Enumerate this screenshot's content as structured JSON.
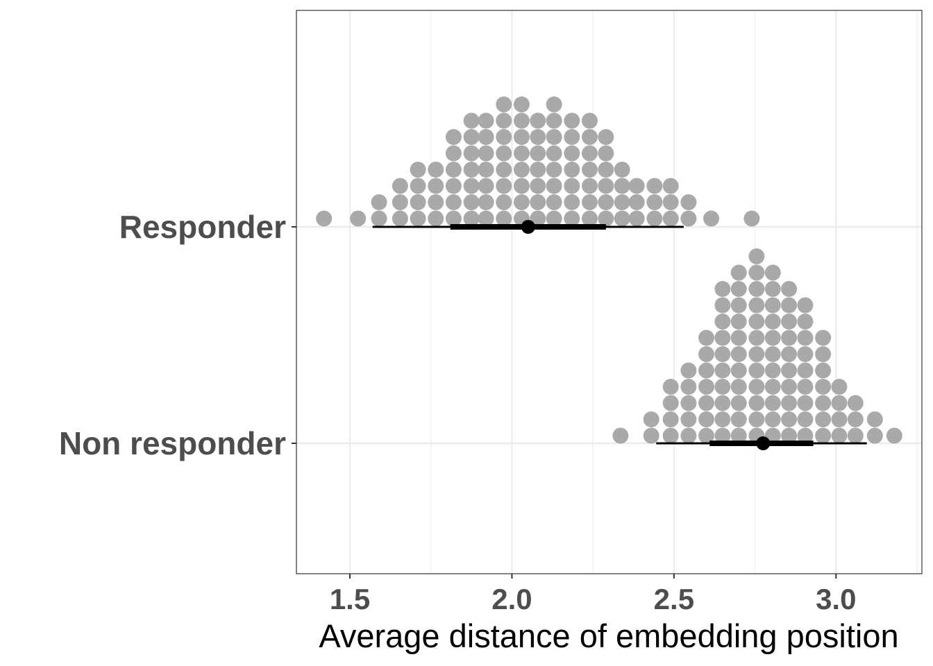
{
  "chart_data": {
    "type": "scatter",
    "subtype": "dotplot-halfeye",
    "title": "",
    "xlabel": "Average distance of embedding position",
    "ylabel": "",
    "xlim": [
      1.335,
      3.265
    ],
    "x_ticks": [
      1.5,
      2.0,
      2.5,
      3.0
    ],
    "x_tick_labels": [
      "1.5",
      "2.0",
      "2.5",
      "3.0"
    ],
    "grid": true,
    "legend": "none",
    "colors": {
      "dots": "#a9a9a9",
      "interval": "#000000",
      "grid": "#ebebeb",
      "panel_border": "#333333",
      "tick_label": "#4d4d4d"
    },
    "categories": [
      "Responder",
      "Non responder"
    ],
    "series": [
      {
        "category": "Responder",
        "median": 2.05,
        "interval_66": [
          1.81,
          2.29
        ],
        "interval_95": [
          1.57,
          2.53
        ],
        "dot_bins": [
          {
            "x": 1.42,
            "count": 1
          },
          {
            "x": 1.525,
            "count": 1
          },
          {
            "x": 1.59,
            "count": 2
          },
          {
            "x": 1.655,
            "count": 3
          },
          {
            "x": 1.71,
            "count": 4
          },
          {
            "x": 1.765,
            "count": 4
          },
          {
            "x": 1.82,
            "count": 6
          },
          {
            "x": 1.875,
            "count": 7
          },
          {
            "x": 1.92,
            "count": 7
          },
          {
            "x": 1.975,
            "count": 8
          },
          {
            "x": 2.03,
            "count": 8
          },
          {
            "x": 2.08,
            "count": 7
          },
          {
            "x": 2.13,
            "count": 8
          },
          {
            "x": 2.185,
            "count": 7
          },
          {
            "x": 2.24,
            "count": 7
          },
          {
            "x": 2.29,
            "count": 6
          },
          {
            "x": 2.34,
            "count": 4
          },
          {
            "x": 2.385,
            "count": 3
          },
          {
            "x": 2.44,
            "count": 3
          },
          {
            "x": 2.49,
            "count": 3
          },
          {
            "x": 2.545,
            "count": 2
          },
          {
            "x": 2.615,
            "count": 1
          },
          {
            "x": 2.74,
            "count": 1
          }
        ]
      },
      {
        "category": "Non responder",
        "median": 2.775,
        "interval_66": [
          2.61,
          2.93
        ],
        "interval_95": [
          2.445,
          3.095
        ],
        "dot_bins": [
          {
            "x": 2.335,
            "count": 1
          },
          {
            "x": 2.43,
            "count": 2
          },
          {
            "x": 2.49,
            "count": 4
          },
          {
            "x": 2.545,
            "count": 5
          },
          {
            "x": 2.6,
            "count": 7
          },
          {
            "x": 2.65,
            "count": 10
          },
          {
            "x": 2.7,
            "count": 11
          },
          {
            "x": 2.755,
            "count": 12
          },
          {
            "x": 2.805,
            "count": 11
          },
          {
            "x": 2.855,
            "count": 10
          },
          {
            "x": 2.905,
            "count": 9
          },
          {
            "x": 2.96,
            "count": 7
          },
          {
            "x": 3.01,
            "count": 4
          },
          {
            "x": 3.06,
            "count": 3
          },
          {
            "x": 3.12,
            "count": 2
          },
          {
            "x": 3.18,
            "count": 1
          }
        ]
      }
    ]
  }
}
